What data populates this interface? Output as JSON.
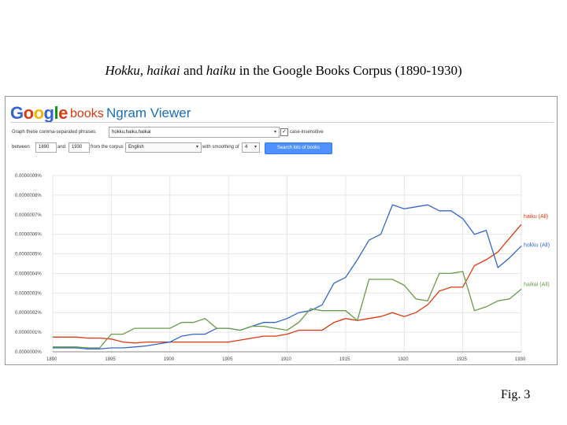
{
  "slide": {
    "title_parts": [
      {
        "text": "Hokku",
        "italic": true
      },
      {
        "text": ", ",
        "italic": false
      },
      {
        "text": "haikai",
        "italic": true
      },
      {
        "text": " and ",
        "italic": false
      },
      {
        "text": "haiku",
        "italic": true
      },
      {
        "text": " in the Google Books Corpus (1890-1930)",
        "italic": false
      }
    ],
    "figure_label": "Fig. 3"
  },
  "ngram": {
    "logo_letters": [
      "G",
      "o",
      "o",
      "g",
      "l",
      "e"
    ],
    "logo_books": "books",
    "app_title": "Ngram Viewer",
    "phrases_label": "Graph these comma-separated phrases:",
    "phrases_value": "hokku,haiku,haikai",
    "case_checked": "✓",
    "case_label": "case-insensitive",
    "between_label": "between",
    "start_year": "1890",
    "and_label": "and",
    "end_year": "1930",
    "corpus_label": "from the corpus",
    "corpus_value": "English",
    "smoothing_label": "with smoothing of",
    "smoothing_value": "4",
    "search_button": "Search lots of books",
    "dropdown_glyph": "▾"
  },
  "chart_data": {
    "type": "line",
    "x": [
      1890,
      1891,
      1892,
      1893,
      1894,
      1895,
      1896,
      1897,
      1898,
      1899,
      1900,
      1901,
      1902,
      1903,
      1904,
      1905,
      1906,
      1907,
      1908,
      1909,
      1910,
      1911,
      1912,
      1913,
      1914,
      1915,
      1916,
      1917,
      1918,
      1919,
      1920,
      1921,
      1922,
      1923,
      1924,
      1925,
      1926,
      1927,
      1928,
      1929,
      1930
    ],
    "xlim": [
      1890,
      1930
    ],
    "ylim": [
      0,
      9e-09
    ],
    "x_ticks": [
      "1890",
      "1895",
      "1900",
      "1905",
      "1910",
      "1915",
      "1920",
      "1925",
      "1930"
    ],
    "x_tick_values": [
      1890,
      1895,
      1900,
      1905,
      1910,
      1915,
      1920,
      1925,
      1930
    ],
    "y_ticks": [
      "0.0000000%",
      "0.0000001%",
      "0.0000002%",
      "0.0000003%",
      "0.0000004%",
      "0.0000005%",
      "0.0000006%",
      "0.0000007%",
      "0.0000008%",
      "0.0000009%"
    ],
    "y_tick_values": [
      0,
      1e-09,
      2e-09,
      3e-09,
      4e-09,
      5e-09,
      6e-09,
      7e-09,
      8e-09,
      9e-09
    ],
    "grid": true,
    "legend": "right",
    "series": [
      {
        "name": "haiku (All)",
        "color": "#dc3912",
        "values": [
          7.5e-10,
          7.5e-10,
          7.5e-10,
          7e-10,
          7e-10,
          6.5e-10,
          5e-10,
          4.5e-10,
          5e-10,
          5e-10,
          5e-10,
          5e-10,
          5e-10,
          5e-10,
          5e-10,
          5e-10,
          6e-10,
          7e-10,
          8e-10,
          8e-10,
          9e-10,
          1.1e-09,
          1.1e-09,
          1.1e-09,
          1.5e-09,
          1.7e-09,
          1.6e-09,
          1.7e-09,
          1.8e-09,
          2e-09,
          1.8e-09,
          2e-09,
          2.4e-09,
          3.1e-09,
          3.3e-09,
          3.3e-09,
          4.4e-09,
          4.7e-09,
          5.1e-09,
          5.8e-09,
          6.5e-09
        ]
      },
      {
        "name": "hokku (All)",
        "color": "#3366cc",
        "values": [
          2e-10,
          2e-10,
          2e-10,
          1.5e-10,
          1.5e-10,
          2e-10,
          2e-10,
          2.5e-10,
          3e-10,
          4e-10,
          5e-10,
          8e-10,
          9e-10,
          9e-10,
          1.2e-09,
          1.2e-09,
          1.1e-09,
          1.3e-09,
          1.5e-09,
          1.5e-09,
          1.7e-09,
          2e-09,
          2.1e-09,
          2.4e-09,
          3.5e-09,
          3.8e-09,
          4.7e-09,
          5.7e-09,
          6e-09,
          7.5e-09,
          7.3e-09,
          7.4e-09,
          7.5e-09,
          7.2e-09,
          7.2e-09,
          6.8e-09,
          6e-09,
          6.2e-09,
          4.3e-09,
          4.8e-09,
          5.4e-09
        ]
      },
      {
        "name": "haikai (All)",
        "color": "#6a9a4a",
        "values": [
          2.5e-10,
          2.5e-10,
          2.5e-10,
          2e-10,
          2e-10,
          9e-10,
          9e-10,
          1.2e-09,
          1.2e-09,
          1.2e-09,
          1.2e-09,
          1.5e-09,
          1.5e-09,
          1.7e-09,
          1.2e-09,
          1.2e-09,
          1.1e-09,
          1.3e-09,
          1.3e-09,
          1.2e-09,
          1.1e-09,
          1.5e-09,
          2.2e-09,
          2.1e-09,
          2.1e-09,
          2.1e-09,
          1.6e-09,
          3.7e-09,
          3.7e-09,
          3.7e-09,
          3.4e-09,
          2.7e-09,
          2.6e-09,
          4e-09,
          4e-09,
          4.1e-09,
          2.1e-09,
          2.3e-09,
          2.6e-09,
          2.7e-09,
          3.2e-09
        ]
      }
    ]
  }
}
